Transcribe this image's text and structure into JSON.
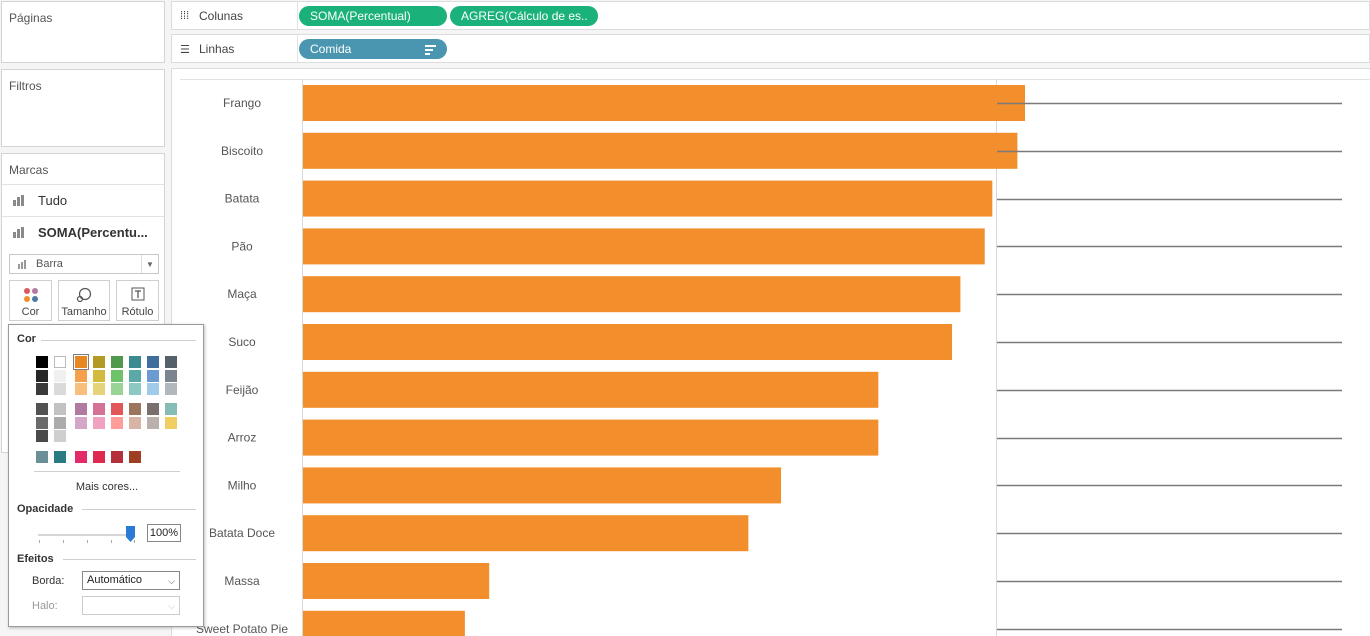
{
  "left_panel": {
    "paginas_label": "Páginas",
    "filtros_label": "Filtros",
    "marcas_label": "Marcas",
    "marks_rows": [
      "Tudo",
      "SOMA(Percentu..."
    ],
    "mark_type": "Barra",
    "mark_buttons": [
      "Cor",
      "Tamanho",
      "Rótulo"
    ]
  },
  "shelves": {
    "columns_label": "Colunas",
    "columns_pills": [
      "SOMA(Percentual)",
      "AGREG(Cálculo de es.."
    ],
    "rows_label": "Linhas",
    "rows_pills": [
      "Comida"
    ]
  },
  "color_popup": {
    "section_cor": "Cor",
    "more_colors": "Mais cores...",
    "section_opacity": "Opacidade",
    "opacity_value": "100%",
    "opacity_fraction": 1.0,
    "section_effects": "Efeitos",
    "border_label": "Borda:",
    "border_value": "Automático",
    "halo_label": "Halo:",
    "halo_value": "",
    "selected_color": "#f28e2b",
    "swatch_columns": [
      [
        "#000000",
        "#262626",
        "#3a3a3a",
        "#525252",
        "#6b6b6b"
      ],
      [
        "#ffffff",
        "#f0f0f0",
        "#dadada",
        "#c2c2c2",
        "#ababab"
      ],
      [
        "#e8871f",
        "#f5a04d",
        "#f8bf7c",
        "#b07aa1",
        "#d4a6c8"
      ],
      [
        "#b29a25",
        "#d1ba3e",
        "#e6d27a",
        "#d37295",
        "#f1a2c1"
      ],
      [
        "#4e9a4a",
        "#6ec36a",
        "#98d594",
        "#e15759",
        "#ff9d9a"
      ],
      [
        "#3a8a8f",
        "#5ba9a6",
        "#8cc9c5",
        "#9c755f",
        "#d7b5a6"
      ],
      [
        "#3f6e9c",
        "#6b9bd1",
        "#a0cbe8",
        "#79706e",
        "#bab0ac"
      ],
      [
        "#56606b",
        "#7b848f",
        "#b0b7bd",
        "#86bcb6",
        "#f1ce63"
      ]
    ],
    "recent_swatches": [
      "#6b8f97",
      "#2a7a82",
      "#e32b6a",
      "#e0294f",
      "#b52f3a",
      "#9e3e22"
    ]
  },
  "chart_data": {
    "type": "bar",
    "orientation": "horizontal",
    "categories": [
      "Frango",
      "Biscoito",
      "Batata",
      "Pão",
      "Maça",
      "Suco",
      "Feijão",
      "Arroz",
      "Milho",
      "Batata Doce",
      "Massa",
      "Sweet Potato Pie"
    ],
    "values": [
      0.95,
      0.94,
      0.907,
      0.897,
      0.865,
      0.854,
      0.757,
      0.757,
      0.629,
      0.586,
      0.245,
      0.213
    ],
    "xlim": [
      0,
      1.0
    ],
    "bar_color": "#f28e2b",
    "second_pane_type": "line"
  }
}
